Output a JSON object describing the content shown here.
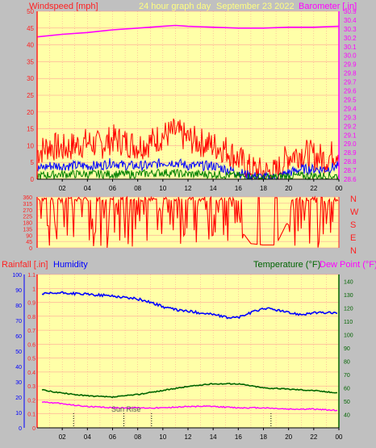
{
  "header": {
    "left_title": "Windspeed [mph]",
    "center_title": "24 hour graph day",
    "date": "September 23 2022",
    "right_title": "Barometer [.in]"
  },
  "colors": {
    "background": "#c0c0c0",
    "plot_bg": "#ffffa8",
    "axis_red": "#ff2020",
    "wind_red": "#ff0000",
    "wind_blue": "#0000ff",
    "wind_green": "#008000",
    "barometer": "#ff00ff",
    "humidity": "#0000ff",
    "temperature": "#006400",
    "dewpoint": "#ff00ff"
  },
  "direction_labels": [
    "N",
    "W",
    "S",
    "E",
    "N"
  ],
  "x_ticks": [
    "02",
    "04",
    "06",
    "08",
    "10",
    "12",
    "14",
    "16",
    "18",
    "20",
    "22",
    "00"
  ],
  "sunrise_label": "Sun Rise",
  "chart_data": [
    {
      "type": "line",
      "name": "wind-barometer",
      "x_range_hours": [
        0,
        24
      ],
      "x_ticks": [
        "02",
        "04",
        "06",
        "08",
        "10",
        "12",
        "14",
        "16",
        "18",
        "20",
        "22",
        "00"
      ],
      "left_axis": {
        "label": "Windspeed [mph]",
        "range": [
          0,
          50
        ],
        "ticks": [
          0,
          5,
          10,
          15,
          20,
          25,
          30,
          35,
          40,
          45,
          50
        ]
      },
      "right_axis": {
        "label": "Barometer [.in]",
        "range": [
          28.6,
          30.5
        ],
        "ticks": [
          28.6,
          28.7,
          28.8,
          28.9,
          29.0,
          29.1,
          29.2,
          29.3,
          29.4,
          29.5,
          29.6,
          29.7,
          29.8,
          29.9,
          30.0,
          30.1,
          30.2,
          30.3,
          30.4,
          30.5
        ]
      },
      "series": [
        {
          "name": "Barometer",
          "axis": "right",
          "x": [
            0,
            2,
            4,
            6,
            8,
            10,
            11,
            12,
            14,
            16,
            18,
            20,
            22,
            24
          ],
          "y": [
            30.21,
            30.24,
            30.26,
            30.29,
            30.31,
            30.33,
            30.34,
            30.33,
            30.32,
            30.31,
            30.31,
            30.32,
            30.32,
            30.33
          ]
        },
        {
          "name": "Gust",
          "axis": "left",
          "x": [
            0,
            1,
            2,
            3,
            4,
            5,
            6,
            7,
            8,
            9,
            10,
            11,
            12,
            13,
            14,
            15,
            16,
            17,
            18,
            19,
            20,
            21,
            22,
            23,
            24
          ],
          "y": [
            8,
            10,
            9,
            10,
            11,
            10,
            12,
            11,
            10,
            11,
            13,
            14,
            12,
            11,
            10,
            9,
            6,
            3,
            2,
            2,
            7,
            8,
            7,
            6,
            9
          ]
        },
        {
          "name": "Average",
          "axis": "left",
          "x": [
            0,
            1,
            2,
            3,
            4,
            5,
            6,
            7,
            8,
            9,
            10,
            11,
            12,
            13,
            14,
            15,
            16,
            17,
            18,
            19,
            20,
            21,
            22,
            23,
            24
          ],
          "y": [
            3,
            4,
            4,
            4,
            4,
            4,
            5,
            4,
            4,
            4,
            5,
            5,
            4,
            4,
            4,
            3,
            2,
            1,
            0.5,
            0.5,
            2,
            3,
            3,
            3,
            4
          ]
        },
        {
          "name": "Calm",
          "axis": "left",
          "x": [
            0,
            2,
            4,
            6,
            8,
            10,
            12,
            14,
            16,
            18,
            20,
            22,
            24
          ],
          "y": [
            1,
            1.5,
            1.5,
            1.5,
            1.5,
            2,
            1.5,
            1.5,
            1,
            0.3,
            1,
            1,
            1
          ]
        }
      ]
    },
    {
      "type": "line",
      "name": "wind-direction",
      "x_range_hours": [
        0,
        24
      ],
      "y_axis": {
        "range": [
          0,
          360
        ],
        "ticks": [
          0,
          45,
          90,
          135,
          180,
          225,
          270,
          315,
          360
        ]
      },
      "right_labels": [
        "N",
        "W",
        "S",
        "E",
        "N"
      ],
      "series": [
        {
          "name": "Direction",
          "x": [
            0,
            2,
            4,
            6,
            8,
            10,
            12,
            14,
            15,
            16,
            16.5,
            17,
            18,
            19,
            20,
            22,
            24
          ],
          "y": [
            300,
            180,
            250,
            160,
            200,
            190,
            210,
            180,
            200,
            120,
            90,
            30,
            20,
            20,
            200,
            180,
            150
          ]
        }
      ]
    },
    {
      "type": "line",
      "name": "rain-humidity-temperature",
      "x_range_hours": [
        0,
        24
      ],
      "x_ticks": [
        "02",
        "04",
        "06",
        "08",
        "10",
        "12",
        "14",
        "16",
        "18",
        "20",
        "22",
        "00"
      ],
      "left_outer_axis": {
        "label": "Humidity",
        "range": [
          0,
          100
        ],
        "ticks": [
          0,
          10,
          20,
          30,
          40,
          50,
          60,
          70,
          80,
          90,
          100
        ]
      },
      "left_inner_axis": {
        "label": "Rainfall [.in]",
        "range": [
          0,
          1.1
        ],
        "ticks": [
          0,
          0.1,
          0.2,
          0.3,
          0.4,
          0.5,
          0.6,
          0.7,
          0.8,
          0.9,
          1,
          1.1
        ]
      },
      "right_axis": {
        "label": "Temperature (°F)",
        "label2": "Dew Point (°F)",
        "range": [
          30,
          145
        ],
        "ticks": [
          40,
          50,
          60,
          70,
          80,
          90,
          100,
          110,
          120,
          130,
          140
        ]
      },
      "series": [
        {
          "name": "Humidity",
          "axis": "left_outer",
          "x": [
            0,
            2,
            4,
            6,
            8,
            9,
            10,
            11,
            12,
            13,
            14,
            15,
            16,
            17,
            18,
            19,
            20,
            21,
            22,
            23,
            24
          ],
          "y": [
            87,
            88,
            87,
            86,
            84,
            82,
            79,
            77,
            76,
            75,
            74,
            72,
            72,
            75,
            78,
            77,
            75,
            74,
            75,
            75,
            75
          ]
        },
        {
          "name": "Temperature",
          "axis": "right",
          "x": [
            0,
            2,
            4,
            6,
            8,
            10,
            12,
            14,
            16,
            18,
            20,
            22,
            24
          ],
          "y": [
            59,
            56,
            54,
            53,
            55,
            58,
            61,
            63,
            63,
            60,
            59,
            58,
            56
          ]
        },
        {
          "name": "Dew Point",
          "axis": "right",
          "x": [
            0,
            2,
            4,
            6,
            8,
            10,
            12,
            14,
            16,
            18,
            20,
            22,
            24
          ],
          "y": [
            50,
            48,
            46,
            45,
            45,
            45,
            46,
            46,
            45,
            45,
            44,
            44,
            43
          ]
        },
        {
          "name": "Rainfall",
          "axis": "left_inner",
          "x": [
            0,
            24
          ],
          "y": [
            0,
            0
          ]
        }
      ],
      "markers": [
        {
          "hour": 2.9,
          "kind": "tick"
        },
        {
          "hour": 6.9,
          "kind": "sunrise"
        },
        {
          "hour": 9.1,
          "kind": "tick"
        },
        {
          "hour": 18.6,
          "kind": "sunset"
        }
      ]
    }
  ]
}
